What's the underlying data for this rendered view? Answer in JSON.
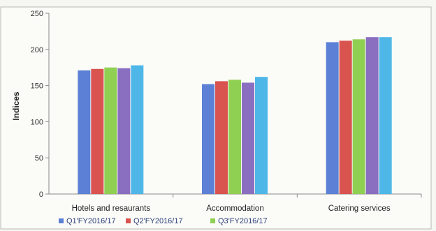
{
  "chart_data": {
    "type": "bar",
    "title": "",
    "xlabel": "",
    "ylabel": "Indices",
    "ylim": [
      0,
      250
    ],
    "yticks": [
      0,
      50,
      100,
      150,
      200,
      250
    ],
    "grid": false,
    "legend_position": "bottom",
    "categories": [
      "Hotels and resaurants",
      "Accommodation",
      "Catering services"
    ],
    "series": [
      {
        "name": "Q1'FY2016/17",
        "color": "#5b80d6",
        "values": [
          171,
          152,
          210
        ]
      },
      {
        "name": "Q2'FY2016/17",
        "color": "#d9534f",
        "values": [
          173,
          156,
          212
        ]
      },
      {
        "name": "Q3'FY2016/17",
        "color": "#8fcf52",
        "values": [
          175,
          158,
          214
        ]
      },
      {
        "name": "",
        "color": "#8a6fc0",
        "values": [
          174,
          154,
          217
        ]
      },
      {
        "name": "",
        "color": "#4fb7e8",
        "values": [
          178,
          162,
          217
        ]
      }
    ]
  }
}
